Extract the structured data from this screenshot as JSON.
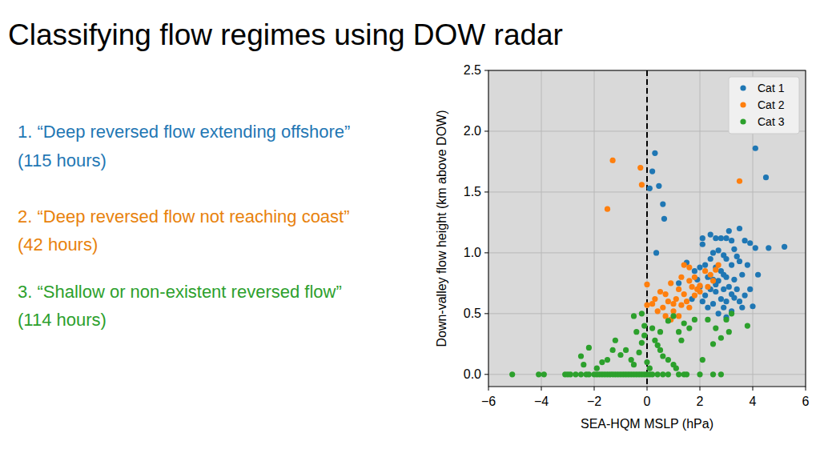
{
  "chart_data": {
    "type": "scatter",
    "title": "Classifying flow regimes using DOW radar",
    "x_label": "SEA-HQM MSLP (hPa)",
    "y_label": "Down-valley flow height (km above DOW)",
    "xlim": [
      -6,
      6
    ],
    "ylim": [
      -0.1,
      2.5
    ],
    "xticks": [
      {
        "value": -6,
        "label": "−6"
      },
      {
        "value": -4,
        "label": "−4"
      },
      {
        "value": -2,
        "label": "−2"
      },
      0,
      2,
      4,
      6
    ],
    "yticks": [
      {
        "value": 0,
        "label": "0.0"
      },
      0.5,
      {
        "value": 1,
        "label": "1.0"
      },
      1.5,
      {
        "value": 2,
        "label": "2.0"
      },
      2.5
    ],
    "grid": true,
    "legend": "upper right",
    "marker": "circle",
    "reference_lines": [
      {
        "x": 0,
        "line_style": "dashed",
        "color": "#000000"
      }
    ],
    "annotations": [
      {
        "text": "1. “Deep reversed flow extending offshore”",
        "color": "#1f77b4"
      },
      {
        "text": "(115 hours)",
        "color": "#1f77b4"
      },
      {
        "text": "2. “Deep reversed flow not reaching coast”",
        "color": "#e8820c"
      },
      {
        "text": "(42 hours)",
        "color": "#e8820c"
      },
      {
        "text": "3. “Shallow or non-existent reversed flow”",
        "color": "#2ca02c"
      },
      {
        "text": "(114 hours)",
        "color": "#2ca02c"
      }
    ],
    "series": [
      {
        "name": "Cat 1",
        "color": "#1f77b4",
        "x": [
          0.3,
          0.2,
          0.1,
          0.45,
          0.6,
          0.65,
          4.1,
          4.5,
          0.35,
          2.1,
          2.1,
          2.6,
          2.8,
          3.0,
          3.2,
          3.5,
          3.7,
          3.9,
          4.1,
          4.6,
          5.2,
          2.4,
          3.1,
          2.5,
          2.7,
          2.9,
          3.3,
          3.0,
          2.2,
          2.0,
          1.8,
          1.5,
          2.6,
          2.8,
          3.2,
          3.5,
          3.8,
          1.9,
          2.3,
          2.5,
          2.7,
          3.0,
          3.3,
          3.6,
          2.0,
          2.4,
          2.6,
          2.9,
          3.1,
          3.4,
          2.2,
          2.8,
          3.0,
          3.3,
          3.7,
          2.5,
          2.9,
          3.2,
          2.7,
          3.0,
          3.6,
          4.0,
          2.3,
          1.7,
          3.9,
          4.2,
          2.4,
          3.4,
          1.2,
          2.6,
          3.2,
          2.1,
          2.9,
          3.5
        ],
        "values": [
          1.82,
          1.67,
          1.53,
          1.55,
          1.4,
          1.28,
          1.86,
          1.62,
          1.0,
          1.12,
          1.07,
          1.12,
          1.12,
          1.12,
          1.1,
          1.2,
          1.1,
          1.08,
          1.04,
          1.04,
          1.05,
          1.15,
          1.18,
          1.0,
          1.02,
          0.98,
          1.03,
          0.95,
          0.9,
          0.88,
          0.85,
          0.92,
          0.88,
          0.85,
          0.9,
          0.93,
          0.9,
          0.78,
          0.8,
          0.78,
          0.77,
          0.8,
          0.78,
          0.82,
          0.72,
          0.7,
          0.68,
          0.7,
          0.72,
          0.7,
          0.65,
          0.62,
          0.6,
          0.63,
          0.65,
          0.58,
          0.55,
          0.52,
          0.5,
          0.47,
          0.55,
          0.56,
          0.55,
          0.62,
          0.7,
          0.82,
          0.95,
          0.97,
          0.75,
          0.74,
          0.66,
          0.6,
          0.82,
          0.6
        ]
      },
      {
        "name": "Cat 2",
        "color": "#ff7f0e",
        "x": [
          -1.3,
          -1.5,
          -0.25,
          -0.2,
          3.5,
          0,
          0,
          0.3,
          0.5,
          0.7,
          0.9,
          1.2,
          1.4,
          1.6,
          1.8,
          2.0,
          2.2,
          2.4,
          2.6,
          1.4,
          1.6,
          1.3,
          0.6,
          0.8,
          1.0,
          1.5,
          1.8,
          0.4,
          1.0,
          1.2,
          1.6,
          2.0,
          2.3,
          0.9,
          0.7,
          1.1,
          1.9,
          2.5,
          2.7,
          1.7,
          0.2,
          1.3
        ],
        "values": [
          1.76,
          1.36,
          1.7,
          1.56,
          1.59,
          0.74,
          0.57,
          0.62,
          0.68,
          0.66,
          0.75,
          0.7,
          0.66,
          0.77,
          0.8,
          0.73,
          0.85,
          0.82,
          0.86,
          0.9,
          0.88,
          0.8,
          0.55,
          0.6,
          0.58,
          0.6,
          0.65,
          0.52,
          0.52,
          0.48,
          0.55,
          0.68,
          0.72,
          0.45,
          0.48,
          0.62,
          0.7,
          0.77,
          0.9,
          0.72,
          0.58,
          0.57
        ]
      },
      {
        "name": "Cat 3",
        "color": "#2ca02c",
        "x": [
          -5.1,
          -4.1,
          -3.9,
          -3.1,
          -3.0,
          -2.9,
          -2.7,
          -2.5,
          -2.3,
          -2.2,
          -2.0,
          -1.9,
          -1.8,
          -1.7,
          -1.6,
          -1.5,
          -1.4,
          -1.3,
          -1.2,
          -1.1,
          -1.0,
          -0.9,
          -0.8,
          -0.7,
          -0.6,
          -0.5,
          -0.4,
          -0.3,
          -0.2,
          -0.1,
          0,
          0.1,
          0.2,
          0.4,
          0.6,
          0.8,
          1.2,
          1.4,
          1.5,
          2.0,
          2.5,
          2.8,
          -2.5,
          -2.4,
          -2.2,
          -1.9,
          -1.7,
          -1.5,
          -1.3,
          -1.2,
          -1.0,
          -0.8,
          -0.6,
          -0.5,
          -0.3,
          -0.2,
          -0.1,
          0,
          0.1,
          0.2,
          0.3,
          0.4,
          0.5,
          0.6,
          0.8,
          1.0,
          1.1,
          2.1,
          1.2,
          1.4,
          1.6,
          1.8,
          1.0,
          0.8,
          2.5,
          2.6,
          2.8,
          3.1,
          3.0,
          3.2,
          3.8,
          -0.5,
          -0.2,
          0.5,
          2.3,
          1.3,
          -0.4,
          -0.1
        ],
        "values": [
          0,
          0,
          0,
          0,
          0,
          0,
          0,
          0,
          0,
          0,
          0,
          0,
          0,
          0,
          0,
          0,
          0,
          0,
          0,
          0,
          0,
          0,
          0,
          0,
          0,
          0,
          0,
          0,
          0,
          0,
          0,
          0,
          0,
          0,
          0,
          0,
          0,
          0,
          0,
          0,
          0,
          0,
          0.15,
          0.08,
          0.22,
          0.05,
          0.1,
          0.12,
          0.2,
          0.28,
          0.16,
          0.2,
          0.12,
          0.08,
          0.18,
          0.26,
          0.32,
          0.1,
          0.05,
          0.38,
          0.28,
          0.24,
          0.2,
          0.15,
          0.12,
          0.08,
          0.05,
          0.12,
          0.35,
          0.42,
          0.38,
          0.45,
          0.48,
          0.44,
          0.25,
          0.38,
          0.3,
          0.35,
          0.45,
          0.5,
          0.4,
          0.48,
          0.5,
          0.35,
          0.45,
          0.28,
          0.35,
          0.4
        ]
      }
    ]
  }
}
